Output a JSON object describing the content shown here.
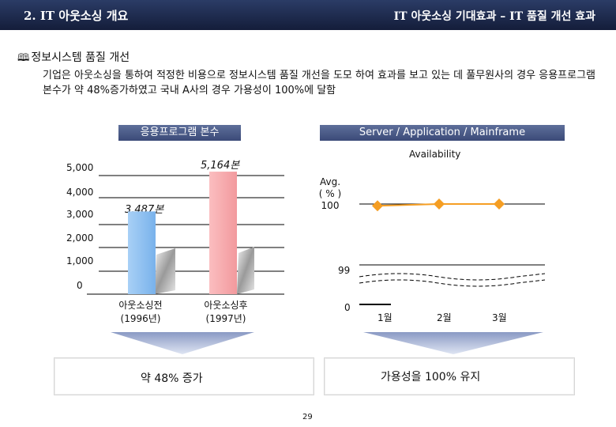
{
  "header": {
    "left_title": "2. IT 아웃소싱 개요",
    "right_title": "IT 아웃소싱 기대효과 – IT 품질 개선 효과"
  },
  "section": {
    "glyph": "🕮",
    "title": "정보시스템 품질 개선",
    "description": "기업은 아웃소싱을 통하여 적정한 비용으로 정보시스템 품질 개선을 도모 하여 효과를 보고 있는 데 풀무원사의 경우 응용프로그램 본수가 약 48%증가하였고 국내 A사의 경우 가용성이 100%에 달함"
  },
  "left_panel": {
    "box_title": "응용프로그램 본수",
    "y_ticks": [
      "5,000",
      "4,000",
      "3,000",
      "2,000",
      "1,000",
      "0"
    ],
    "bar1_label": "3,487본",
    "bar2_label": "5,164본",
    "cat1_line1": "아웃소싱전",
    "cat1_line2": "(1996년)",
    "cat2_line1": "아웃소싱후",
    "cat2_line2": "(1997년)",
    "result": "약 48% 증가"
  },
  "right_panel": {
    "box_title": "Server / Application / Mainframe",
    "chart_title": "Availability",
    "y_label_line1": "Avg.",
    "y_label_line2": "( % )",
    "y_label_line3": "100",
    "tick_99": "99",
    "tick_0": "0",
    "x_labels": [
      "1월",
      "2월",
      "3월"
    ],
    "result": "가용성을 100% 유지"
  },
  "page_number": "29",
  "colors": {
    "header": "#1e2a4e",
    "bar1": "#8fc1f0",
    "bar2": "#f7a8ab",
    "line": "#f59e23",
    "box": "#4b5a86"
  },
  "chart_data": [
    {
      "type": "bar",
      "title": "응용프로그램 본수",
      "categories": [
        "아웃소싱전 (1996년)",
        "아웃소싱후 (1997년)"
      ],
      "values": [
        3487,
        5164
      ],
      "data_labels": [
        "3,487본",
        "5,164본"
      ],
      "ylim": [
        0,
        5500
      ],
      "y_ticks": [
        0,
        1000,
        2000,
        3000,
        4000,
        5000
      ],
      "grid": true
    },
    {
      "type": "line",
      "title": "Availability",
      "ylabel": "Avg. ( % )",
      "x": [
        "1월",
        "2월",
        "3월"
      ],
      "series": [
        {
          "values": [
            99.97,
            100,
            100
          ]
        }
      ],
      "grid": true
    }
  ]
}
